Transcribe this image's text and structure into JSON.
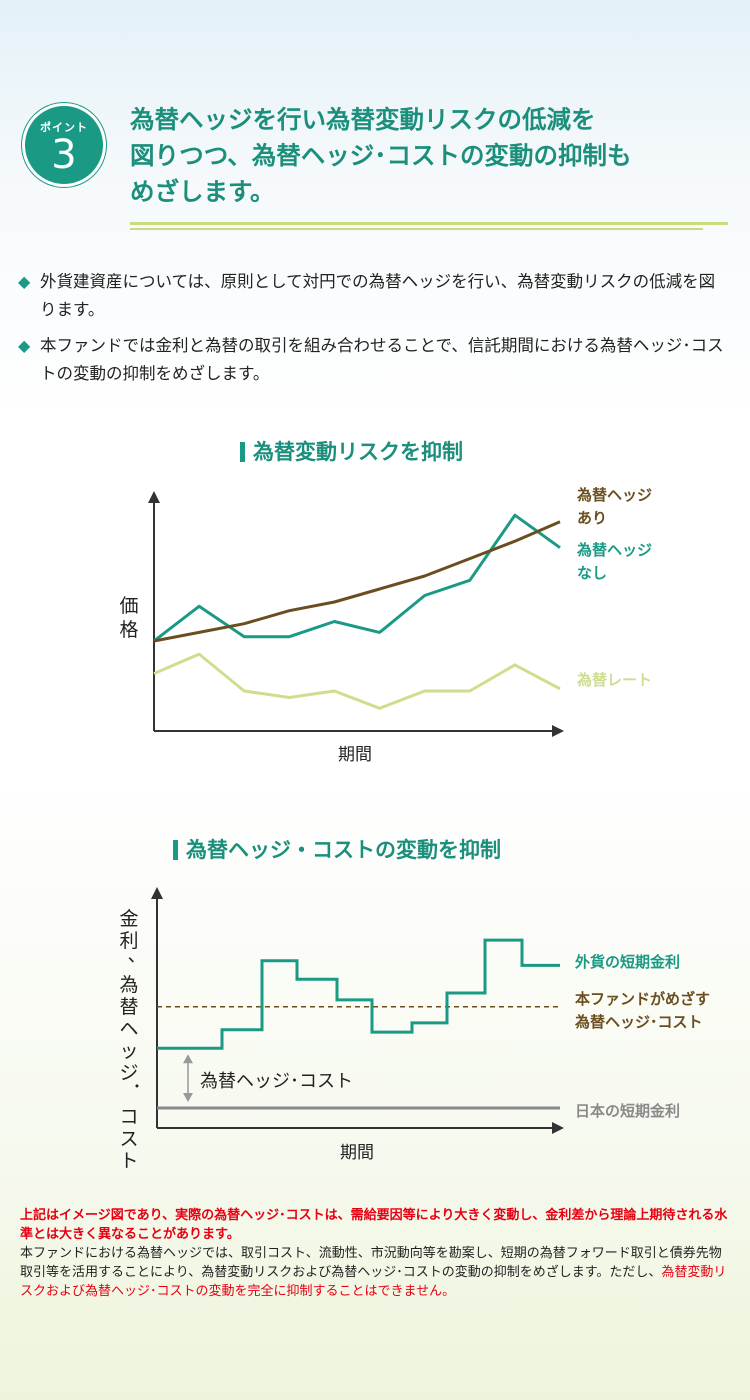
{
  "point": {
    "label": "ポイント",
    "number": "3"
  },
  "headline": [
    "為替ヘッジを行い為替変動リスクの低減を",
    "図りつつ、為替ヘッジ･コストの変動の抑制も",
    "めざします。"
  ],
  "bullets": [
    "外貨建資産については、原則として対円での為替ヘッジを行い、為替変動リスクの低減を図ります。",
    "本ファンドでは金利と為替の取引を組み合わせることで、信託期間における為替ヘッジ･コストの変動の抑制をめざします。"
  ],
  "bullet_mark": "◆",
  "colors": {
    "teal": "#1a9a84",
    "brown": "#6b4e1f",
    "lightgreen": "#cbdf8c",
    "gray": "#8a8a8a"
  },
  "chart_data": [
    {
      "type": "line",
      "title": "為替変動リスクを抑制",
      "xlabel": "期間",
      "ylabel": "価格",
      "x": [
        0,
        1,
        2,
        3,
        4,
        5,
        6,
        7,
        8,
        9
      ],
      "series": [
        {
          "name": "為替ヘッジあり",
          "color": "#6b4e1f",
          "values": [
            35,
            39,
            43,
            49,
            53,
            59,
            65,
            73,
            81,
            90
          ]
        },
        {
          "name": "為替ヘッジなし",
          "color": "#1a9a84",
          "values": [
            35,
            51,
            37,
            37,
            44,
            39,
            56,
            63,
            93,
            78
          ]
        },
        {
          "name": "為替レート",
          "color": "#cbdf8c",
          "values": [
            20,
            29,
            12,
            9,
            12,
            4,
            12,
            12,
            24,
            13
          ]
        }
      ],
      "label_lines": [
        [
          "為替ヘッジ",
          "あり"
        ],
        [
          "為替ヘッジ",
          "なし"
        ],
        [
          "為替レート"
        ]
      ],
      "ylim": [
        0,
        100
      ],
      "xlim": [
        0,
        9
      ],
      "grid": false
    },
    {
      "type": "line",
      "title": "為替ヘッジ・コストの変動を抑制",
      "xlabel": "期間",
      "ylabel": "金利、為替ヘッジ･コスト",
      "x": [
        0,
        1,
        2,
        3,
        4,
        5,
        6,
        7,
        8,
        9
      ],
      "series": [
        {
          "name": "外貨の短期金利",
          "color": "#1a9a84",
          "step": true,
          "values": [
            26,
            34,
            64,
            56,
            47,
            33,
            37,
            50,
            73,
            62
          ]
        },
        {
          "name": "本ファンドがめざす為替ヘッジ･コスト",
          "color": "#6b4e1f",
          "dashed": true,
          "values": [
            44,
            44,
            44,
            44,
            44,
            44,
            44,
            44,
            44,
            44
          ]
        },
        {
          "name": "日本の短期金利",
          "color": "#8a8a8a",
          "values": [
            0,
            0,
            0,
            0,
            0,
            0,
            0,
            0,
            0,
            0
          ]
        }
      ],
      "label_lines": [
        [
          "外貨の短期金利"
        ],
        [
          "本ファンドがめざす",
          "為替ヘッジ･コスト"
        ],
        [
          "日本の短期金利"
        ]
      ],
      "annotation": "為替ヘッジ･コスト",
      "ylim": [
        -10,
        100
      ],
      "xlim": [
        0,
        9
      ],
      "grid": false
    }
  ],
  "note": {
    "red_bold": "上記はイメージ図であり、実際の為替ヘッジ･コストは、需給要因等により大きく変動し、金利差から理論上期待される水準とは大きく異なることがあります。",
    "normal": "本ファンドにおける為替ヘッジでは、取引コスト、流動性、市況動向等を勘案し、短期の為替フォワード取引と債券先物取引等を活用することにより、為替変動リスクおよび為替ヘッジ･コストの変動の抑制をめざします。ただし、",
    "red": "為替変動リスクおよび為替ヘッジ･コストの変動を完全に抑制することはできません。"
  }
}
